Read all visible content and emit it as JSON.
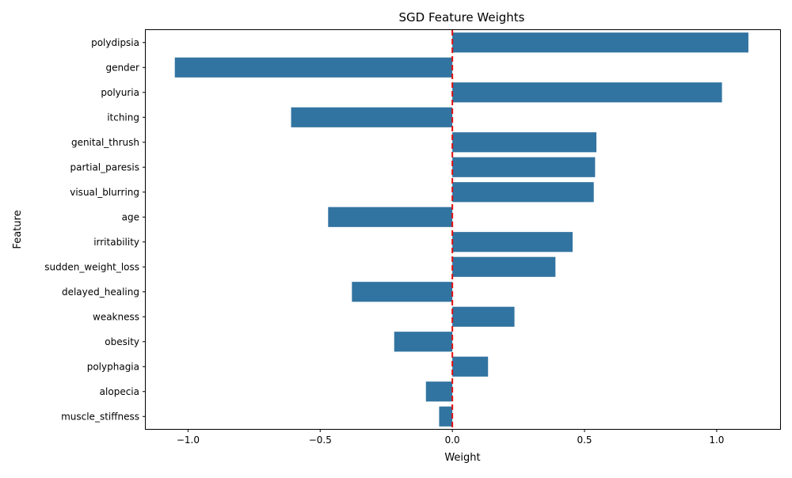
{
  "chart_data": {
    "type": "bar",
    "orientation": "horizontal",
    "title": "SGD Feature Weights",
    "xlabel": "Weight",
    "ylabel": "Feature",
    "xlim": [
      -1.16,
      1.24
    ],
    "xticks": [
      -1.0,
      -0.5,
      0.0,
      0.5,
      1.0
    ],
    "xtick_labels": [
      "−1.0",
      "−0.5",
      "0.0",
      "0.5",
      "1.0"
    ],
    "grid": false,
    "reference_line": {
      "x": 0.0,
      "style": "dashed",
      "color": "#e01010"
    },
    "bar_color": "#3274a1",
    "categories": [
      "polydipsia",
      "gender",
      "polyuria",
      "itching",
      "genital_thrush",
      "partial_paresis",
      "visual_blurring",
      "age",
      "irritability",
      "sudden_weight_loss",
      "delayed_healing",
      "weakness",
      "obesity",
      "polyphagia",
      "alopecia",
      "muscle_stiffness"
    ],
    "values": [
      1.12,
      -1.05,
      1.02,
      -0.61,
      0.545,
      0.54,
      0.535,
      -0.47,
      0.455,
      0.39,
      -0.38,
      0.235,
      -0.22,
      0.135,
      -0.1,
      -0.05
    ]
  }
}
